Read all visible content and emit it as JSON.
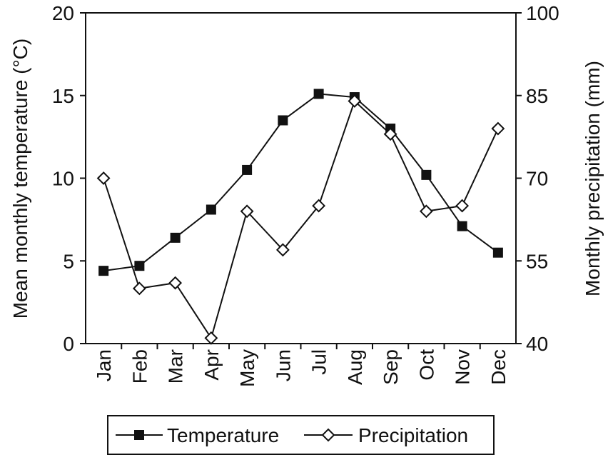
{
  "chart_data": {
    "type": "line",
    "categories": [
      "Jan",
      "Feb",
      "Mar",
      "Apr",
      "May",
      "Jun",
      "Jul",
      "Aug",
      "Sep",
      "Oct",
      "Nov",
      "Dec"
    ],
    "ylabel_left": "Mean monthly temperature (°C)",
    "ylabel_right": "Monthly precipitation (mm)",
    "ylim_left": [
      0,
      20
    ],
    "ylim_right": [
      40,
      100
    ],
    "yticks_left": [
      "0",
      "5",
      "10",
      "15",
      "20"
    ],
    "yticks_right": [
      "40",
      "55",
      "70",
      "85",
      "100"
    ],
    "grid": false,
    "legend_position": "bottom",
    "series": [
      {
        "name": "Temperature",
        "axis": "left",
        "marker": "filled-square",
        "color": "#111111",
        "values": [
          4.4,
          4.7,
          6.4,
          8.1,
          10.5,
          13.5,
          15.1,
          14.9,
          13.0,
          10.2,
          7.1,
          5.5
        ]
      },
      {
        "name": "Precipitation",
        "axis": "right",
        "marker": "open-diamond",
        "color": "#111111",
        "values": [
          70,
          50,
          51,
          41,
          64,
          57,
          65,
          84,
          78,
          64,
          65,
          79
        ]
      }
    ]
  }
}
